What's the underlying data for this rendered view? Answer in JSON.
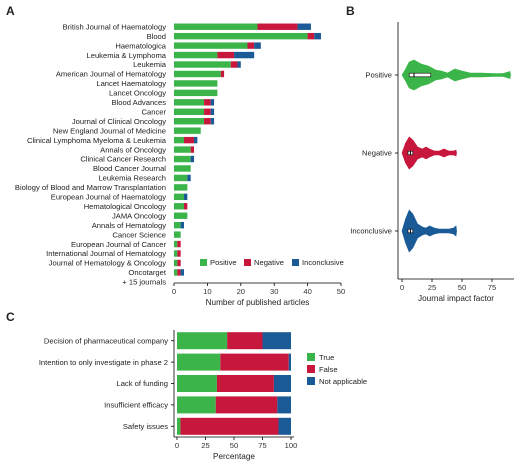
{
  "panels": {
    "a": "A",
    "b": "B",
    "c": "C"
  },
  "colors": {
    "positive": "#3bb54a",
    "negative": "#c8173c",
    "inconclusive": "#1a5a96"
  },
  "chart_data": [
    {
      "type": "bar",
      "orientation": "horizontal",
      "stacked": true,
      "categories": [
        "British Journal of Haematology",
        "Blood",
        "Haematologica",
        "Leukemia & Lymphoma",
        "Leukemia",
        "American Journal of Hematology",
        "Lancet Haematology",
        "Lancet Oncology",
        "Blood Advances",
        "Cancer",
        "Journal of Clinical Oncology",
        "New England Journal of Medicine",
        "Clinical Lymphoma Myeloma & Leukemia",
        "Annals of Oncology",
        "Clinical Cancer Research",
        "Blood Cancer Journal",
        "Leukemia Research",
        "Biology of Blood and Marrow Transplantation",
        "European Journal of Haematology",
        "Hematological Oncology",
        "JAMA Oncology",
        "Annals of Hematology",
        "Cancer Science",
        "European Journal of Cancer",
        "International Journal of Hematology",
        "Journal of Hematology & Oncology",
        "Oncotarget",
        "+ 15 journals"
      ],
      "series": [
        {
          "name": "Positive",
          "values": [
            25,
            40,
            22,
            13,
            17,
            14,
            13,
            13,
            9,
            9,
            9,
            8,
            3,
            5,
            5,
            5,
            4,
            4,
            3,
            3,
            4,
            2,
            2,
            1,
            1,
            1,
            1,
            0
          ]
        },
        {
          "name": "Negative",
          "values": [
            12,
            2,
            2,
            5,
            2,
            1,
            0,
            0,
            2,
            2,
            2,
            0,
            3,
            1,
            0,
            0,
            0,
            0,
            0,
            1,
            0,
            0,
            0,
            1,
            1,
            1,
            1,
            0
          ]
        },
        {
          "name": "Inconclusive",
          "values": [
            4,
            2,
            2,
            6,
            1,
            0,
            0,
            0,
            1,
            1,
            1,
            0,
            1,
            0,
            1,
            0,
            1,
            0,
            1,
            0,
            0,
            1,
            0,
            0,
            0,
            0,
            1,
            0
          ]
        }
      ],
      "xlabel": "Number of published articles",
      "xlim": [
        0,
        50
      ],
      "xticks": [
        0,
        10,
        20,
        30,
        40,
        50
      ],
      "legend": "bottom-right",
      "grid": false
    },
    {
      "type": "violin",
      "categories": [
        "Positive",
        "Negative",
        "Inconclusive"
      ],
      "xlabel": "Journal impact factor",
      "xlim": [
        0,
        90
      ],
      "xticks": [
        0,
        25,
        50,
        75
      ],
      "medians": [
        10,
        7,
        7
      ],
      "quartiles": [
        [
          6,
          24
        ],
        [
          5,
          9
        ],
        [
          5,
          9
        ]
      ],
      "ranges": [
        [
          2,
          90
        ],
        [
          2,
          45
        ],
        [
          2,
          45
        ]
      ],
      "grid": false
    },
    {
      "type": "bar",
      "orientation": "horizontal",
      "stacked": true,
      "categories": [
        "Decision of pharmaceutical company",
        "Intention to only investigate in phase 2",
        "Lack of funding",
        "Insufficient efficacy",
        "Safety issues"
      ],
      "series": [
        {
          "name": "True",
          "values": [
            44,
            38,
            35,
            34,
            3
          ]
        },
        {
          "name": "False",
          "values": [
            31,
            60,
            50,
            54,
            86
          ]
        },
        {
          "name": "Not applicable",
          "values": [
            25,
            2,
            15,
            12,
            11
          ]
        }
      ],
      "xlabel": "Percentage",
      "xlim": [
        0,
        100
      ],
      "xticks": [
        0,
        25,
        50,
        75,
        100
      ],
      "legend": "right",
      "grid": false
    }
  ]
}
